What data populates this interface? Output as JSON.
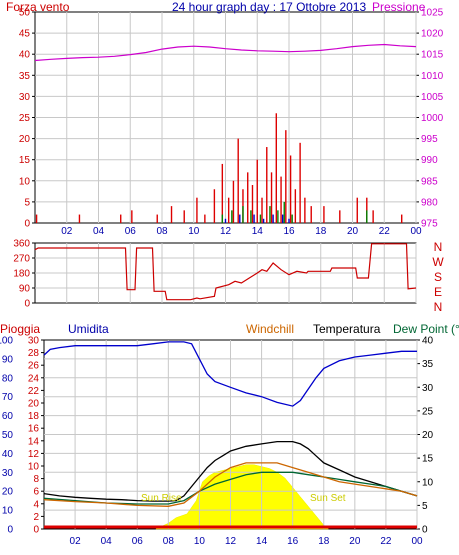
{
  "chart_data": [
    {
      "type": "line",
      "title": "24 hour graph day : 17 Ottobre 2013",
      "left_axis_label": "Forza vento",
      "right_axis_label": "Pressione",
      "x_ticks": [
        "02",
        "04",
        "06",
        "08",
        "10",
        "12",
        "14",
        "16",
        "18",
        "20",
        "22",
        "00"
      ],
      "left_ylim": [
        0,
        50
      ],
      "left_ticks": [
        0,
        5,
        10,
        15,
        20,
        25,
        30,
        35,
        40,
        45,
        50
      ],
      "right_ylim": [
        975,
        1025
      ],
      "right_ticks": [
        975,
        980,
        985,
        990,
        995,
        1000,
        1005,
        1010,
        1015,
        1020,
        1025
      ],
      "series": [
        {
          "key": "pressure",
          "color": "#cc00cc",
          "axis": "right",
          "x": [
            0,
            1,
            2,
            3,
            4,
            5,
            6,
            7,
            8,
            9,
            10,
            11,
            12,
            13,
            14,
            15,
            16,
            17,
            18,
            19,
            20,
            21,
            22,
            23,
            24
          ],
          "values": [
            1013.5,
            1013.8,
            1014,
            1014.2,
            1014.3,
            1014.5,
            1014.9,
            1015.4,
            1016.2,
            1016.7,
            1016.9,
            1016.7,
            1016.3,
            1016,
            1015.8,
            1015.7,
            1015.6,
            1015.7,
            1015.9,
            1016.3,
            1016.8,
            1017.1,
            1017.3,
            1017.0,
            1016.8
          ]
        },
        {
          "key": "wind_gust",
          "color": "#dd0000",
          "axis": "left",
          "x": [
            0.1,
            2.8,
            5.4,
            6.1,
            7.7,
            8.6,
            9.4,
            10.2,
            10.7,
            11.3,
            11.8,
            12.2,
            12.5,
            12.8,
            13.1,
            13.4,
            13.7,
            14.0,
            14.3,
            14.6,
            14.9,
            15.2,
            15.5,
            15.8,
            16.1,
            16.4,
            16.7,
            17.0,
            17.4,
            18.2,
            19.2,
            20.3,
            20.9,
            21.3,
            23.1
          ],
          "values": [
            2,
            2,
            2,
            3,
            2,
            4,
            3,
            6,
            2,
            8,
            14,
            6,
            10,
            20,
            8,
            12,
            9,
            15,
            6,
            18,
            12,
            26,
            11,
            22,
            16,
            8,
            19,
            6,
            4,
            4,
            3,
            6,
            6,
            3,
            2
          ]
        },
        {
          "key": "wind_speed",
          "color": "#008000",
          "axis": "left",
          "x": [
            11.8,
            12.4,
            13.1,
            13.6,
            14.2,
            14.8,
            15.3,
            15.7,
            16.2,
            20.9
          ],
          "values": [
            2,
            3,
            4,
            3,
            2,
            4,
            3,
            5,
            2,
            3
          ]
        },
        {
          "key": "wind_avg",
          "color": "#0000cc",
          "axis": "left",
          "x": [
            12.0,
            12.9,
            13.8,
            14.4,
            15.0,
            15.6,
            16.0
          ],
          "values": [
            1,
            2,
            2,
            1,
            2,
            2,
            1
          ]
        }
      ]
    },
    {
      "type": "line",
      "title": "",
      "left_ylim": [
        0,
        360
      ],
      "left_ticks": [
        0,
        90,
        180,
        270,
        360
      ],
      "direction_labels": [
        "N",
        "W",
        "S",
        "E",
        "N"
      ],
      "series": [
        {
          "key": "wind_direction",
          "color": "#cc0000",
          "axis": "left",
          "x": [
            0,
            0.2,
            5.7,
            5.8,
            6.3,
            6.4,
            7.4,
            7.5,
            8.2,
            8.3,
            9.0,
            9.8,
            10.2,
            10.4,
            11.3,
            11.4,
            12.2,
            12.6,
            13.0,
            13.5,
            14.0,
            14.3,
            14.6,
            15.0,
            15.5,
            16.0,
            16.5,
            17.1,
            17.2,
            18.6,
            18.7,
            20.2,
            20.3,
            21.0,
            21.2,
            23.4,
            23.5,
            24
          ],
          "values": [
            320,
            330,
            330,
            80,
            80,
            330,
            330,
            70,
            70,
            20,
            20,
            20,
            30,
            25,
            40,
            90,
            110,
            130,
            120,
            150,
            180,
            200,
            190,
            240,
            200,
            170,
            190,
            180,
            190,
            190,
            210,
            210,
            150,
            150,
            355,
            355,
            85,
            90
          ]
        }
      ]
    },
    {
      "type": "line",
      "title": "",
      "labels": {
        "rain": "Pioggia",
        "humidity": "Umidita",
        "windchill": "Windchill",
        "temperature": "Temperatura",
        "dewpoint": "Dew Point (°C"
      },
      "annotations": {
        "sunrise": "Sun Rise",
        "sunset": "Sun Set"
      },
      "left_ylim": [
        0,
        100
      ],
      "left_ticks": [
        0,
        10,
        20,
        30,
        40,
        50,
        60,
        70,
        80,
        90,
        100
      ],
      "left2_ylim": [
        0,
        30
      ],
      "left2_ticks": [
        0,
        2,
        4,
        6,
        8,
        10,
        12,
        14,
        16,
        18,
        20,
        22,
        24,
        26,
        28,
        30
      ],
      "right_ylim": [
        0,
        40
      ],
      "right_ticks": [
        0,
        5,
        10,
        15,
        20,
        25,
        30,
        35,
        40
      ],
      "series": [
        {
          "key": "humidity",
          "color": "#0000cc",
          "axis": "left",
          "x": [
            0,
            0.4,
            1,
            2,
            3,
            4,
            5,
            6,
            7,
            8,
            9,
            9.5,
            10,
            10.5,
            11,
            12,
            13,
            14,
            15,
            16,
            16.5,
            17,
            17.5,
            18,
            19,
            20,
            21,
            22,
            23,
            24
          ],
          "values": [
            92,
            95,
            96,
            97,
            97,
            97,
            97,
            97,
            98,
            99,
            99,
            98,
            90,
            82,
            78,
            75,
            72,
            70,
            67,
            65,
            68,
            74,
            80,
            85,
            89,
            91,
            92,
            93,
            94,
            94
          ]
        },
        {
          "key": "temperature",
          "color": "#000000",
          "axis": "right",
          "x": [
            0,
            1,
            2,
            3,
            4,
            5,
            6,
            7,
            8,
            8.5,
            9,
            9.5,
            10,
            10.5,
            11,
            11.5,
            12,
            13,
            14,
            15,
            16,
            16.5,
            17,
            17.5,
            18,
            19,
            20,
            21,
            22,
            23,
            24
          ],
          "values": [
            7.5,
            7,
            6.7,
            6.5,
            6.3,
            6.2,
            6,
            5.9,
            5.9,
            6,
            7,
            9,
            11,
            13,
            14.5,
            15.5,
            16.5,
            17.5,
            18,
            18.5,
            18.5,
            18,
            17,
            15.5,
            14,
            12.5,
            11,
            10,
            9,
            8,
            7
          ]
        },
        {
          "key": "dewpoint",
          "color": "#006633",
          "axis": "right",
          "x": [
            0,
            2,
            4,
            6,
            8,
            9,
            10,
            11,
            12,
            13,
            14,
            15,
            16,
            17,
            18,
            19,
            20,
            21,
            22,
            23,
            24
          ],
          "values": [
            6.5,
            6,
            5.5,
            5.3,
            5.3,
            6,
            8,
            9.5,
            10.5,
            11.5,
            12,
            12,
            12,
            11.5,
            11,
            10.5,
            10,
            9.5,
            9,
            8,
            7
          ]
        },
        {
          "key": "windchill",
          "color": "#cc6600",
          "axis": "right",
          "x": [
            0,
            2,
            4,
            6,
            8,
            9,
            10,
            11,
            12,
            13,
            14,
            15,
            16,
            17,
            18,
            19,
            20,
            21,
            22,
            23,
            24
          ],
          "values": [
            6.2,
            5.8,
            5.5,
            5,
            4.8,
            5.5,
            8,
            11,
            13,
            14,
            14,
            14,
            13,
            12,
            11,
            10,
            9.5,
            9,
            8.5,
            8,
            7
          ]
        },
        {
          "key": "solar",
          "color": "#ffff00",
          "axis": "left",
          "x": [
            7.2,
            8.0,
            8.5,
            9.2,
            9.8,
            10.2,
            10.6,
            11.0,
            11.5,
            12.0,
            12.5,
            13.0,
            13.5,
            14.0,
            14.5,
            15.0,
            15.5,
            16.0,
            16.5,
            17.0,
            17.5,
            18.0,
            18.3
          ],
          "values": [
            0,
            3,
            6,
            8,
            15,
            25,
            28,
            30,
            31,
            32,
            33,
            34,
            34,
            33,
            32,
            30,
            27,
            22,
            17,
            12,
            7,
            2,
            0
          ]
        }
      ]
    }
  ]
}
